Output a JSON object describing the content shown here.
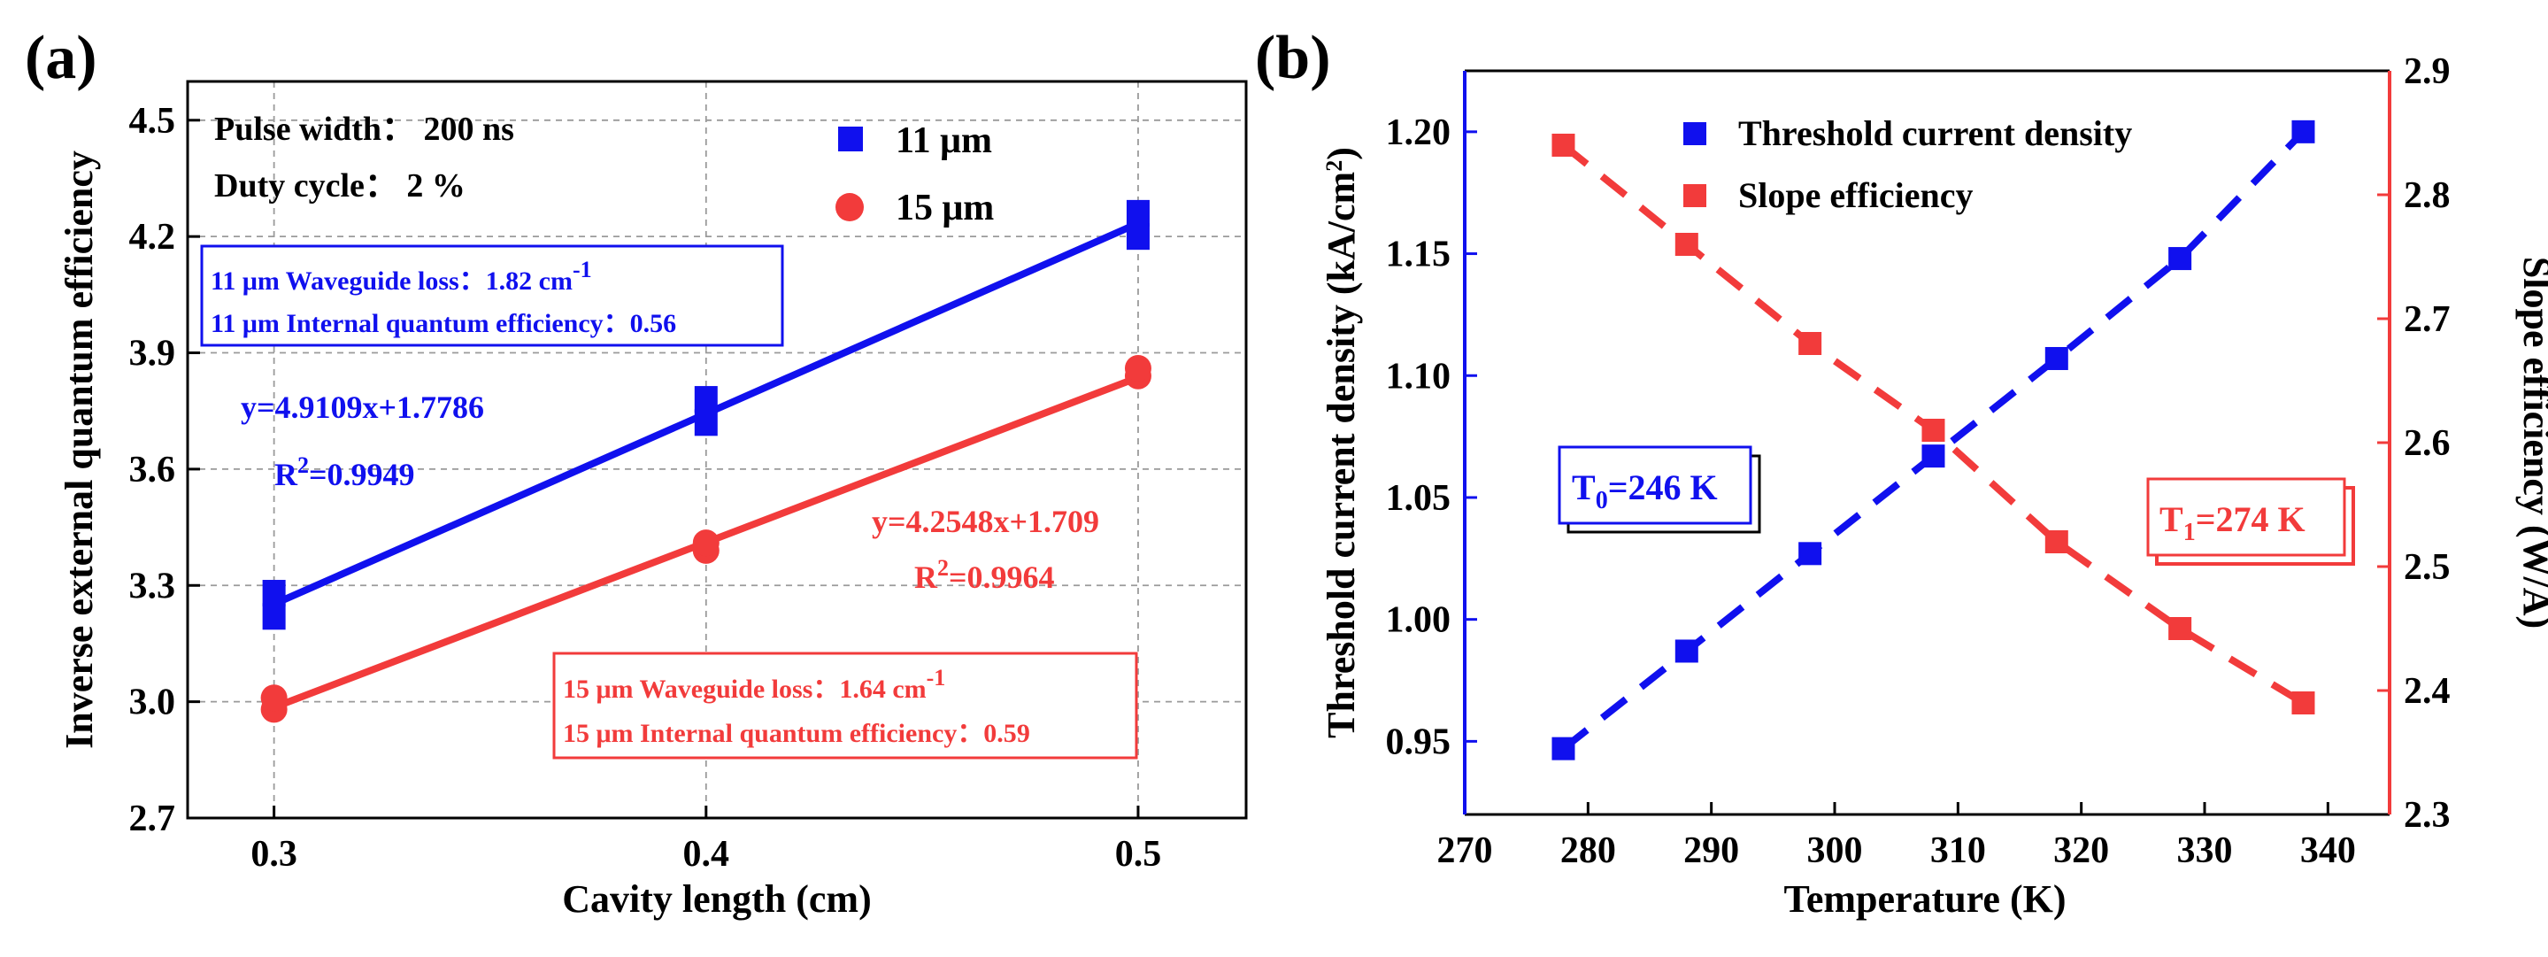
{
  "colors": {
    "blue": "#1010ee",
    "red": "#f23b3b",
    "black": "#000000"
  },
  "chart_data": [
    {
      "panel": "(a)",
      "type": "scatter",
      "xlabel": "Cavity length (cm)",
      "ylabel": "Inverse external quantum efficiency",
      "xlim": [
        0.28,
        0.525
      ],
      "ylim": [
        2.7,
        4.6
      ],
      "xticks": [
        "0.3",
        "0.4",
        "0.5"
      ],
      "yticks": [
        "2.7",
        "3.0",
        "3.3",
        "3.6",
        "3.9",
        "4.2",
        "4.5"
      ],
      "grid": true,
      "conditions": [
        "Pulse width： 200 ns",
        "Duty cycle： 2 %"
      ],
      "legend": [
        {
          "label": "11 μm",
          "marker": "square",
          "color": "#1010ee"
        },
        {
          "label": "15 μm",
          "marker": "circle",
          "color": "#f23b3b"
        }
      ],
      "series": [
        {
          "name": "11 μm",
          "x": [
            0.3,
            0.3,
            0.4,
            0.4,
            0.5,
            0.5
          ],
          "y": [
            3.22,
            3.28,
            3.72,
            3.78,
            4.2,
            4.26
          ],
          "fit": {
            "slope": 4.9109,
            "intercept": 1.7786
          }
        },
        {
          "name": "15 μm",
          "x": [
            0.3,
            0.3,
            0.4,
            0.4,
            0.5,
            0.5
          ],
          "y": [
            2.98,
            3.01,
            3.39,
            3.41,
            3.84,
            3.86
          ],
          "fit": {
            "slope": 4.2548,
            "intercept": 1.709
          }
        }
      ],
      "annotations": {
        "eq11": "y=4.9109x+1.7786",
        "r2_11": "R2=0.9949",
        "eq15": "y=4.2548x+1.709",
        "r2_15": "R2=0.9964",
        "box11": [
          "11 μm Waveguide loss：1.82 cm-1",
          "11 μm Internal quantum efficiency：0.56"
        ],
        "box15": [
          "15 μm Waveguide loss：1.64 cm-1",
          "15 μm Internal quantum efficiency：0.59"
        ]
      }
    },
    {
      "panel": "(b)",
      "type": "scatter",
      "xlabel": "Temperature (K)",
      "ylabel_left": "Threshold current density (kA/cm2)",
      "ylabel_right": "Slope efficiency (W/A)",
      "xlim": [
        270,
        345
      ],
      "ylim_left": [
        0.92,
        1.225
      ],
      "ylim_right": [
        2.3,
        2.9
      ],
      "xticks": [
        "270",
        "280",
        "290",
        "300",
        "310",
        "320",
        "330",
        "340"
      ],
      "yticks_left": [
        "0.95",
        "1.00",
        "1.05",
        "1.10",
        "1.15",
        "1.20"
      ],
      "yticks_right": [
        "2.3",
        "2.4",
        "2.5",
        "2.6",
        "2.7",
        "2.8",
        "2.9"
      ],
      "legend": [
        {
          "label": "Threshold current density",
          "color": "#1010ee"
        },
        {
          "label": "Slope efficiency",
          "color": "#f23b3b"
        }
      ],
      "series": [
        {
          "name": "Threshold current density",
          "axis": "left",
          "x": [
            278,
            288,
            298,
            308,
            318,
            328,
            338
          ],
          "y": [
            0.947,
            0.987,
            1.027,
            1.067,
            1.107,
            1.148,
            1.2
          ]
        },
        {
          "name": "Slope efficiency",
          "axis": "right",
          "x": [
            278,
            288,
            298,
            308,
            318,
            328,
            338
          ],
          "y": [
            2.84,
            2.76,
            2.68,
            2.61,
            2.52,
            2.45,
            2.39
          ]
        }
      ],
      "annotations": {
        "t0": "T0=246 K",
        "t1": "T1=274 K"
      }
    }
  ]
}
